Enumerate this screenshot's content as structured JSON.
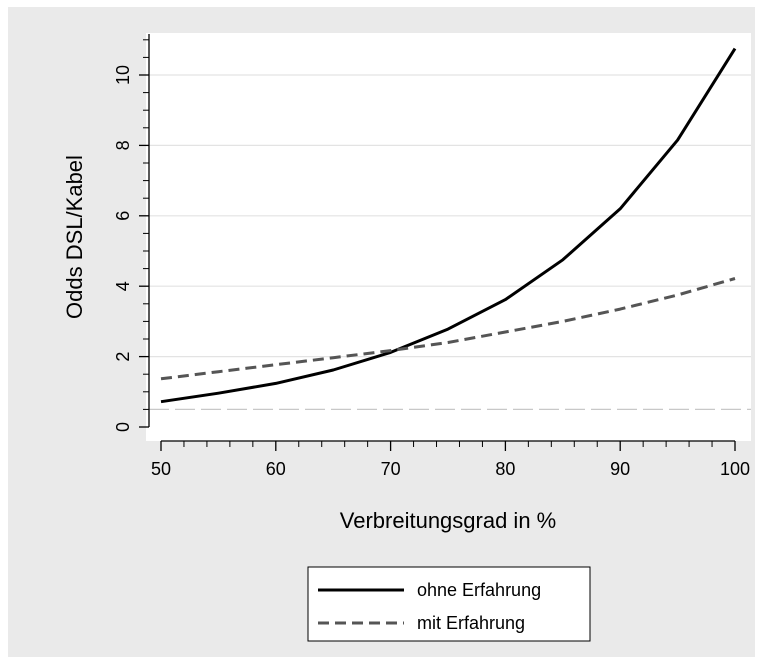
{
  "chart_data": {
    "type": "line",
    "title": "",
    "xlabel": "Verbreitungsgrad in %",
    "ylabel": "Odds DSL/Kabel",
    "xlim": [
      50,
      100
    ],
    "ylim": [
      0,
      11
    ],
    "xticks": [
      50,
      60,
      70,
      80,
      90,
      100
    ],
    "yticks": [
      0,
      2,
      4,
      6,
      8,
      10
    ],
    "grid": "horizontal",
    "reference_line": {
      "y": 0.5,
      "style": "dashed"
    },
    "legend_position": "bottom",
    "x": [
      50,
      55,
      60,
      65,
      70,
      75,
      80,
      85,
      90,
      95,
      100
    ],
    "series": [
      {
        "name": "ohne Erfahrung",
        "style": "solid",
        "color": "#000000",
        "values": [
          0.72,
          0.96,
          1.24,
          1.62,
          2.12,
          2.78,
          3.62,
          4.75,
          6.2,
          8.15,
          10.75
        ]
      },
      {
        "name": "mit Erfahrung",
        "style": "dashed",
        "color": "#555555",
        "values": [
          1.37,
          1.57,
          1.77,
          1.97,
          2.17,
          2.4,
          2.7,
          3.0,
          3.35,
          3.75,
          4.22
        ]
      }
    ],
    "colors": {
      "outer_background": "#eaeaea",
      "plot_background": "#ffffff",
      "grid": "#e3e3e3",
      "reference": "#c8c8c8"
    }
  }
}
